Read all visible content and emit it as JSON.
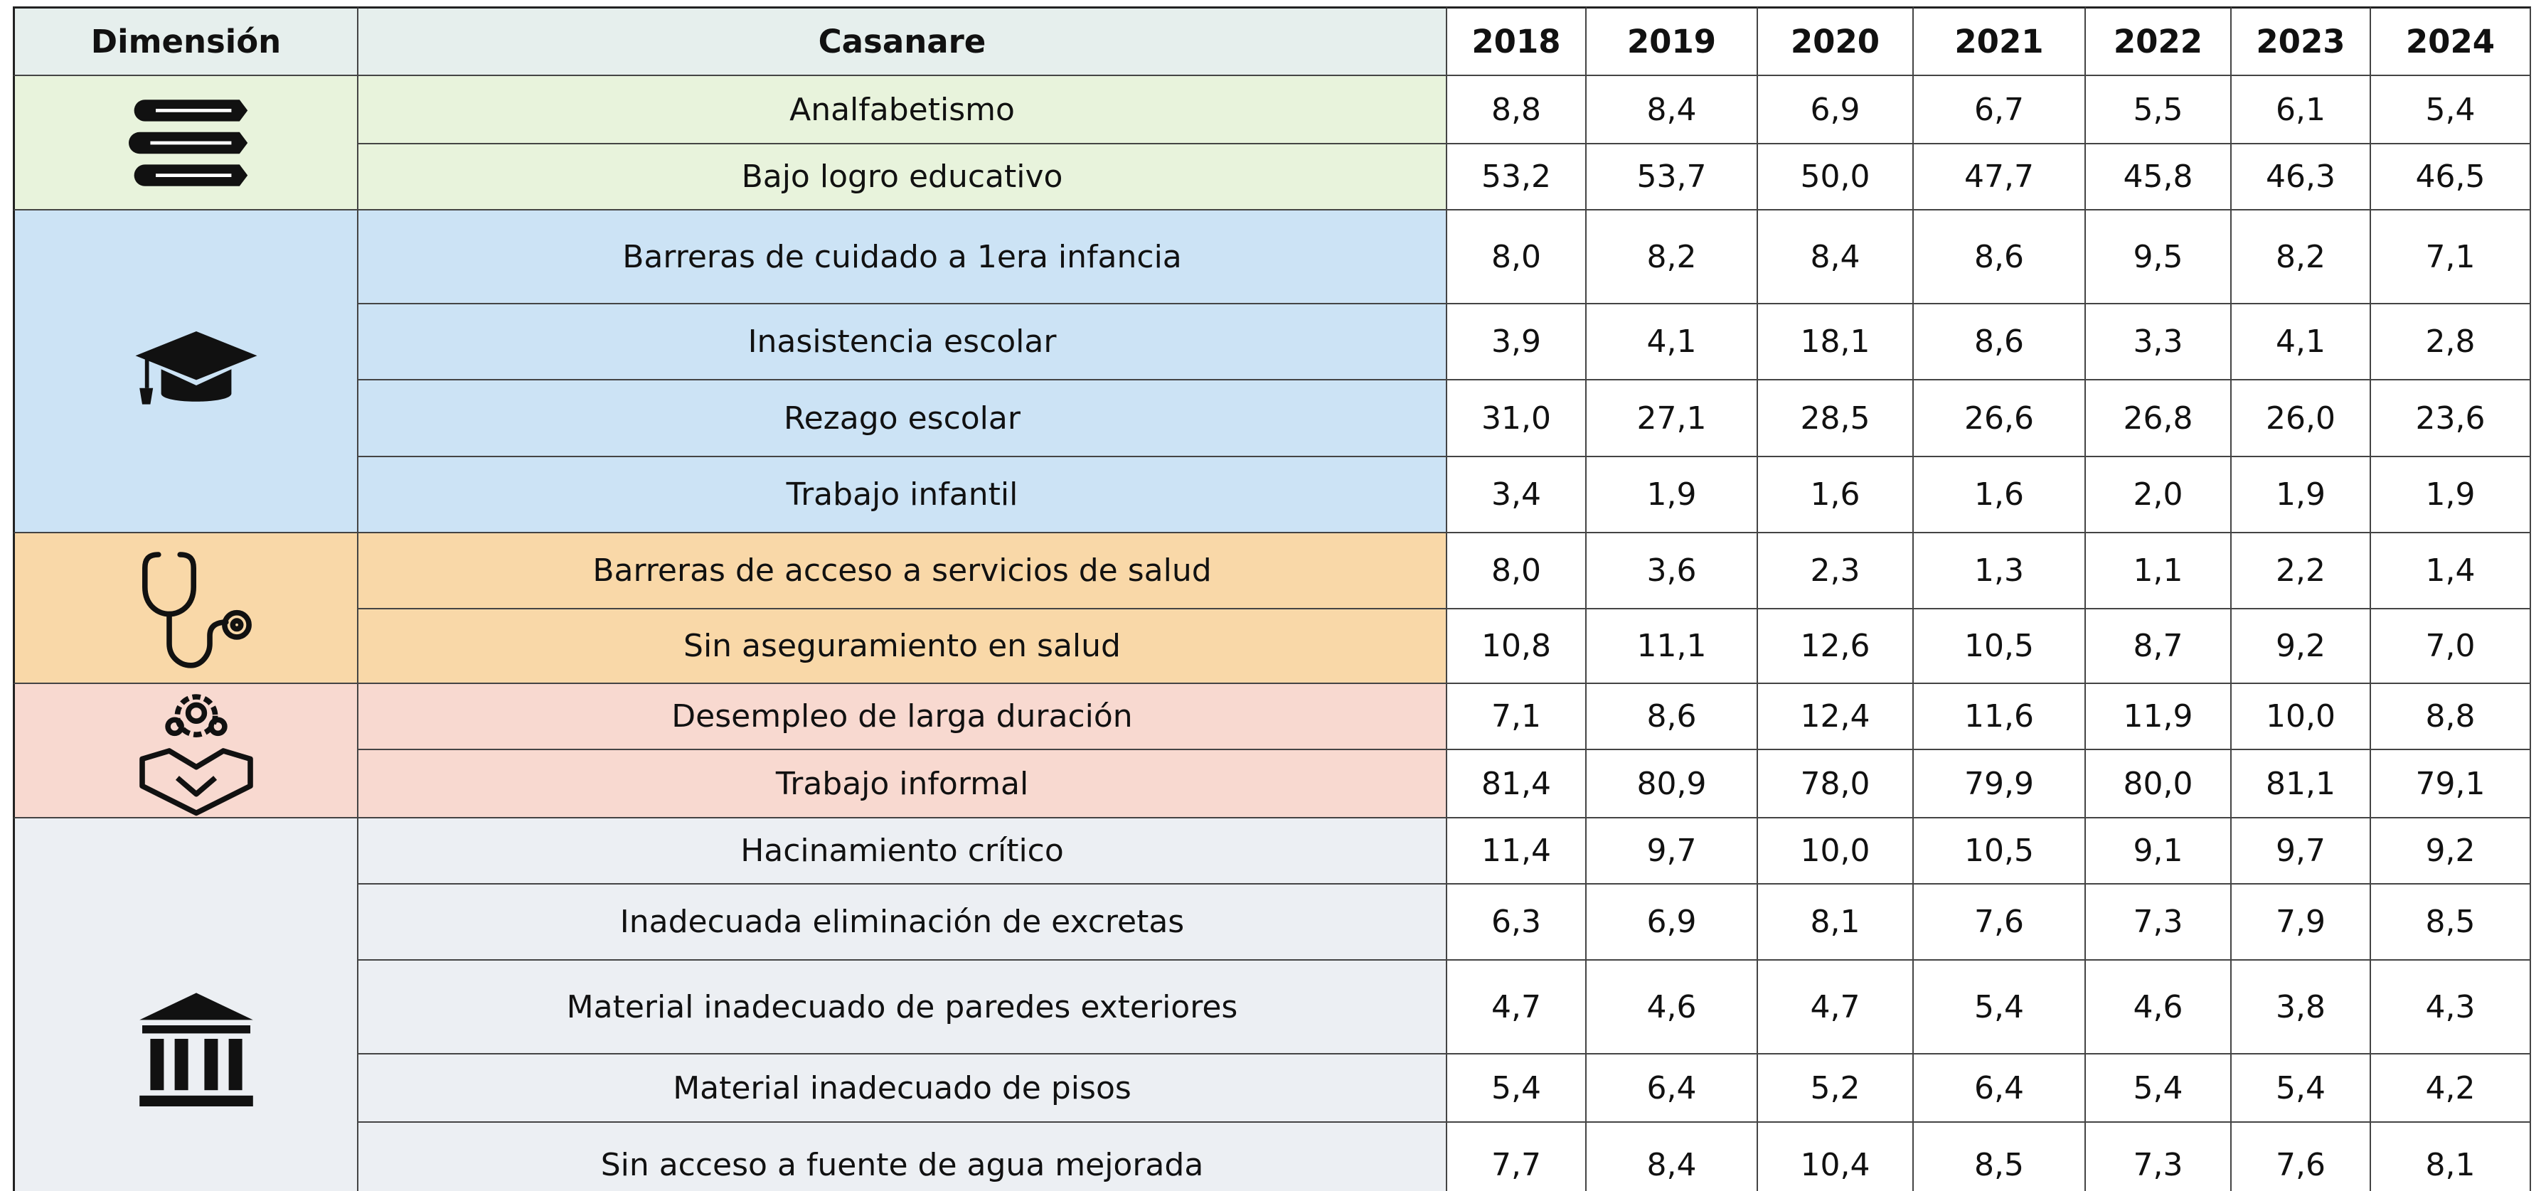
{
  "table": {
    "header": [
      "Dimensión",
      "Casanare",
      "2018",
      "2019",
      "2020",
      "2021",
      "2022",
      "2023",
      "2024"
    ],
    "groups": [
      {
        "rows": [
          [
            "Analfabetismo",
            "8,8",
            "8,4",
            "6,9",
            "6,7",
            "5,5",
            "6,1",
            "5,4"
          ],
          [
            "Bajo logro educativo",
            "53,2",
            "53,7",
            "50,0",
            "47,7",
            "45,8",
            "46,3",
            "46,5"
          ]
        ]
      },
      {
        "rows": [
          [
            "Barreras de cuidado a 1era infancia",
            "8,0",
            "8,2",
            "8,4",
            "8,6",
            "9,5",
            "8,2",
            "7,1"
          ],
          [
            "Inasistencia escolar",
            "3,9",
            "4,1",
            "18,1",
            "8,6",
            "3,3",
            "4,1",
            "2,8"
          ],
          [
            "Rezago escolar",
            "31,0",
            "27,1",
            "28,5",
            "26,6",
            "26,8",
            "26,0",
            "23,6"
          ],
          [
            "Trabajo infantil",
            "3,4",
            "1,9",
            "1,6",
            "1,6",
            "2,0",
            "1,9",
            "1,9"
          ]
        ]
      },
      {
        "rows": [
          [
            "Barreras de acceso a servicios de salud",
            "8,0",
            "3,6",
            "2,3",
            "1,3",
            "1,1",
            "2,2",
            "1,4"
          ],
          [
            "Sin aseguramiento en salud",
            "10,8",
            "11,1",
            "12,6",
            "10,5",
            "8,7",
            "9,2",
            "7,0"
          ]
        ]
      },
      {
        "rows": [
          [
            "Desempleo de larga duración",
            "7,1",
            "8,6",
            "12,4",
            "11,6",
            "11,9",
            "10,0",
            "8,8"
          ],
          [
            "Trabajo informal",
            "81,4",
            "80,9",
            "78,0",
            "79,9",
            "80,0",
            "81,1",
            "79,1"
          ]
        ]
      },
      {
        "rows": [
          [
            "Hacinamiento crítico",
            "11,4",
            "9,7",
            "10,0",
            "10,5",
            "9,1",
            "9,7",
            "9,2"
          ],
          [
            "Inadecuada eliminación de excretas",
            "6,3",
            "6,9",
            "8,1",
            "7,6",
            "7,3",
            "7,9",
            "8,5"
          ],
          [
            "Material inadecuado de paredes exteriores",
            "4,7",
            "4,6",
            "4,7",
            "5,4",
            "4,6",
            "3,8",
            "4,3"
          ],
          [
            "Material inadecuado de pisos",
            "5,4",
            "6,4",
            "5,2",
            "6,4",
            "5,4",
            "5,4",
            "4,2"
          ],
          [
            "Sin acceso a fuente de agua mejorada",
            "7,7",
            "8,4",
            "10,4",
            "8,5",
            "7,3",
            "7,6",
            "8,1"
          ]
        ]
      }
    ]
  }
}
